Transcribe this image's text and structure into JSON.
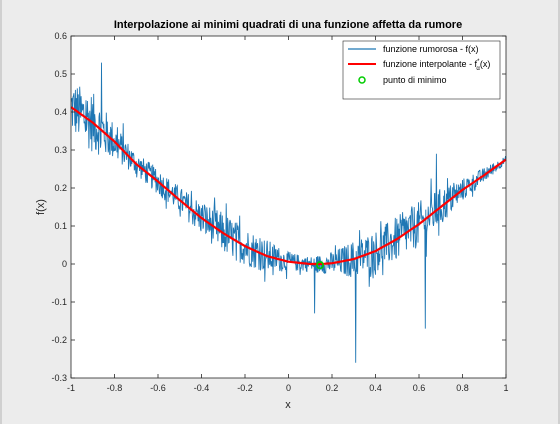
{
  "window": {
    "background": "#ececec"
  },
  "chart_data": {
    "type": "line",
    "title": "Interpolazione ai minimi quadrati di una funzione affetta da rumore",
    "xlabel": "x",
    "ylabel": "f(x)",
    "xlim": [
      -1,
      1
    ],
    "ylim": [
      -0.3,
      0.6
    ],
    "x_ticks": [
      "-1",
      "-0.8",
      "-0.6",
      "-0.4",
      "-0.2",
      "0",
      "0.2",
      "0.4",
      "0.6",
      "0.8",
      "1"
    ],
    "y_ticks": [
      "-0.3",
      "-0.2",
      "-0.1",
      "0",
      "0.1",
      "0.2",
      "0.3",
      "0.4",
      "0.5",
      "0.6"
    ],
    "grid": false,
    "legend_position": "top-right",
    "series": [
      {
        "name": "funzione rumorosa - f(x)",
        "style": "line",
        "color": "#1f77b4",
        "noise_envelope": {
          "x": [
            -1.0,
            -0.9,
            -0.8,
            -0.7,
            -0.6,
            -0.5,
            -0.4,
            -0.3,
            -0.2,
            -0.1,
            0.0,
            0.1,
            0.2,
            0.3,
            0.4,
            0.5,
            0.6,
            0.7,
            0.8,
            0.9,
            1.0
          ],
          "amplitude": [
            0.07,
            0.08,
            0.05,
            0.03,
            0.035,
            0.035,
            0.045,
            0.055,
            0.05,
            0.045,
            0.025,
            0.02,
            0.03,
            0.05,
            0.055,
            0.06,
            0.06,
            0.05,
            0.03,
            0.02,
            0.01
          ]
        },
        "outliers": [
          {
            "x": 0.31,
            "y": -0.26
          },
          {
            "x": 0.63,
            "y": -0.17
          },
          {
            "x": 0.12,
            "y": -0.13
          },
          {
            "x": 0.68,
            "y": 0.29
          },
          {
            "x": -0.86,
            "y": 0.53
          }
        ]
      },
      {
        "name": "funzione interpolante - f",
        "name_super": "*",
        "name_sub": "α",
        "name_tail": "(x)",
        "style": "line",
        "color": "#ff0000",
        "x": [
          -1.0,
          -0.9,
          -0.8,
          -0.7,
          -0.6,
          -0.5,
          -0.4,
          -0.3,
          -0.2,
          -0.1,
          0.0,
          0.1,
          0.15,
          0.2,
          0.3,
          0.4,
          0.5,
          0.6,
          0.7,
          0.8,
          0.9,
          1.0
        ],
        "y": [
          0.413,
          0.372,
          0.322,
          0.263,
          0.217,
          0.168,
          0.121,
          0.081,
          0.047,
          0.021,
          0.006,
          0.0,
          0.0,
          0.002,
          0.013,
          0.034,
          0.066,
          0.105,
          0.15,
          0.195,
          0.234,
          0.275
        ]
      },
      {
        "name": "punto di minimo",
        "style": "marker-circle",
        "color": "#00cc00",
        "x": [
          0.145
        ],
        "y": [
          -0.003
        ]
      }
    ]
  }
}
